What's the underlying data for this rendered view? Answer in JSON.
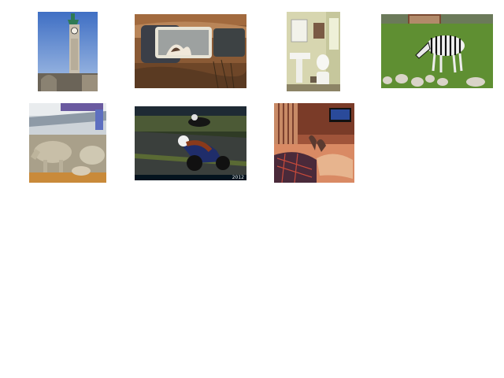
{
  "gallery": {
    "items": [
      {
        "subject": "clock-tower"
      },
      {
        "subject": "cat-in-rusty-car"
      },
      {
        "subject": "bathroom"
      },
      {
        "subject": "zebra"
      },
      {
        "subject": "cows-in-barn"
      },
      {
        "subject": "motorcycle-racer",
        "caption": "2012"
      },
      {
        "subject": "feet-on-bed-tv"
      }
    ]
  }
}
